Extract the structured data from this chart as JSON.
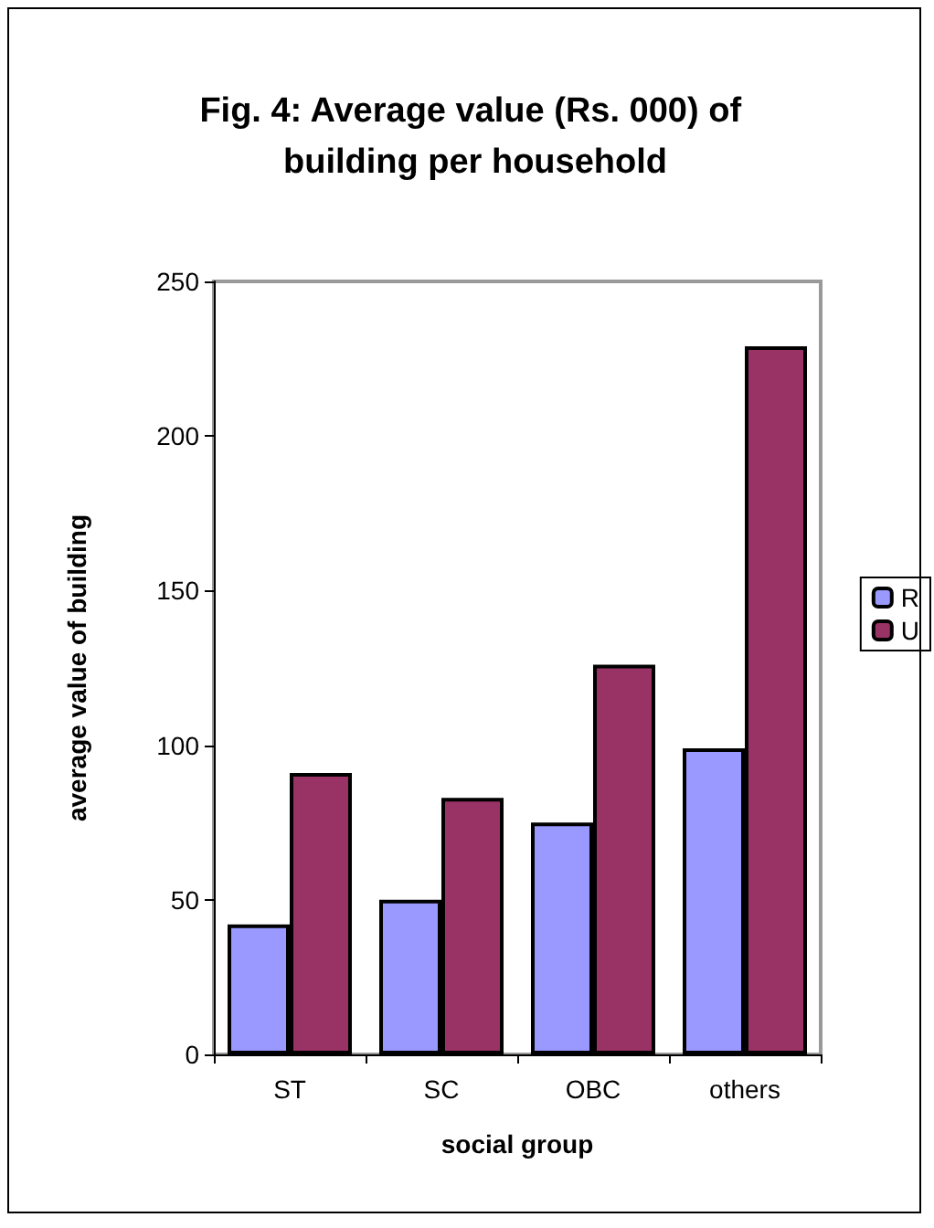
{
  "chart_data": {
    "type": "bar",
    "title": "Fig. 4: Average value (Rs. 000) of building per household",
    "xlabel": "social group",
    "ylabel": "average value of building",
    "categories": [
      "ST",
      "SC",
      "OBC",
      "others"
    ],
    "series": [
      {
        "name": "R",
        "color": "#9999ff",
        "values": [
          42,
          50,
          75,
          99
        ]
      },
      {
        "name": "U",
        "color": "#993366",
        "values": [
          91,
          83,
          126,
          229
        ]
      }
    ],
    "ylim": [
      0,
      250
    ],
    "yticks": [
      0,
      50,
      100,
      150,
      200,
      250
    ],
    "grid": false,
    "legend": "right"
  }
}
